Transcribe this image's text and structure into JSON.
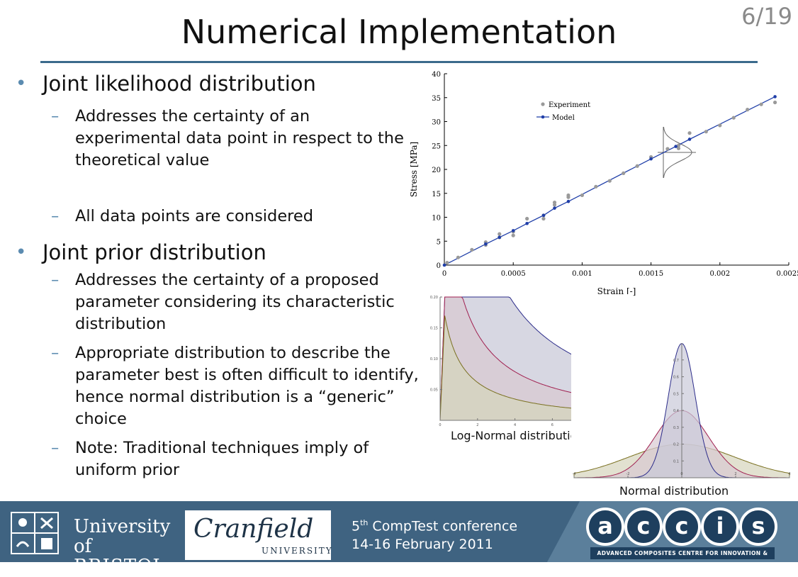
{
  "slide": {
    "title": "Numerical Implementation",
    "page_number": "6/19"
  },
  "bullets": [
    {
      "text": "Joint likelihood distribution",
      "subs": [
        "Addresses the certainty of an experimental data point in respect to the theoretical value",
        "All data points are considered"
      ]
    },
    {
      "text": "Joint prior distribution",
      "subs": [
        "Addresses the certainty of a proposed parameter considering its characteristic distribution",
        "Appropriate distribution to describe the parameter best is often difficult to identify, hence normal distribution is a “generic” choice",
        "Note: Traditional techniques imply of uniform prior"
      ]
    }
  ],
  "chart_data": [
    {
      "type": "scatter",
      "xlabel": "Strain [-]",
      "ylabel": "Stress [MPa]",
      "xlim": [
        0,
        0.0025
      ],
      "ylim": [
        0,
        40
      ],
      "x_ticks": [
        "0",
        "0.0005",
        "0.001",
        "0.0015",
        "0.002",
        "0.0025"
      ],
      "y_ticks": [
        "0",
        "5",
        "10",
        "15",
        "20",
        "25",
        "30",
        "35",
        "40"
      ],
      "legend": "top-left",
      "series": [
        {
          "name": "Experiment",
          "color": "#9a9a9a",
          "x": [
            2e-05,
            0.0001,
            0.0002,
            0.0003,
            0.0003,
            0.0004,
            0.0004,
            0.0005,
            0.0005,
            0.0006,
            0.00072,
            0.00072,
            0.0008,
            0.0008,
            0.0009,
            0.0009,
            0.001,
            0.0011,
            0.0012,
            0.0013,
            0.0014,
            0.0015,
            0.00162,
            0.0017,
            0.0017,
            0.00178,
            0.0019,
            0.002,
            0.0021,
            0.0022,
            0.0023,
            0.0024
          ],
          "y": [
            0.5,
            1.6,
            3.2,
            4.8,
            4.2,
            6.5,
            5.8,
            7.0,
            6.2,
            9.7,
            10.4,
            9.7,
            12.6,
            13.1,
            14.2,
            14.6,
            14.6,
            16.4,
            17.6,
            19.2,
            20.7,
            22.6,
            24.3,
            25.0,
            24.4,
            27.6,
            27.9,
            29.2,
            30.8,
            32.5,
            33.6,
            34.0
          ]
        },
        {
          "name": "Model",
          "color": "#1f3ea8",
          "x": [
            0,
            0.0003,
            0.0004,
            0.0005,
            0.0006,
            0.00072,
            0.0008,
            0.0009,
            0.0015,
            0.00168,
            0.00178,
            0.0024
          ],
          "y": [
            0,
            4.4,
            5.8,
            7.2,
            8.7,
            10.4,
            11.9,
            13.3,
            22.2,
            24.8,
            26.3,
            35.2
          ]
        }
      ]
    },
    {
      "type": "area",
      "title": "Log-Normal distribution",
      "xlim": [
        0,
        10
      ],
      "ylim": [
        0,
        0.2
      ],
      "series": [
        {
          "color": "#2c2c8a",
          "fill": "#c9c9d8"
        },
        {
          "color": "#a02050",
          "fill": "#d8c9d2"
        },
        {
          "color": "#7a7020",
          "fill": "#d6d4bc"
        }
      ]
    },
    {
      "type": "area",
      "title": "Normal distribution",
      "xlim": [
        -4,
        4
      ],
      "ylim": [
        0,
        0.8
      ],
      "series": [
        {
          "sigma": 0.5,
          "color": "#2c2c8a",
          "fill": "#c9c9d8"
        },
        {
          "sigma": 1.0,
          "color": "#a02050",
          "fill": "#d8c9d2"
        },
        {
          "sigma": 2.0,
          "color": "#7a7020",
          "fill": "#d6d4bc"
        }
      ]
    }
  ],
  "footer": {
    "uob_line1": "University of",
    "uob_line2": "BRISTOL",
    "cranfield_name": "Cranfield",
    "cranfield_sub": "UNIVERSITY",
    "conf_num": "5",
    "conf_sup": "th",
    "conf_line1": " CompTest conference",
    "conf_line2": "14-16 February 2011",
    "accis_letters": [
      "a",
      "c",
      "c",
      "i",
      "s"
    ],
    "accis_sub": "ADVANCED COMPOSITES CENTRE FOR INNOVATION & SCIENCE"
  }
}
